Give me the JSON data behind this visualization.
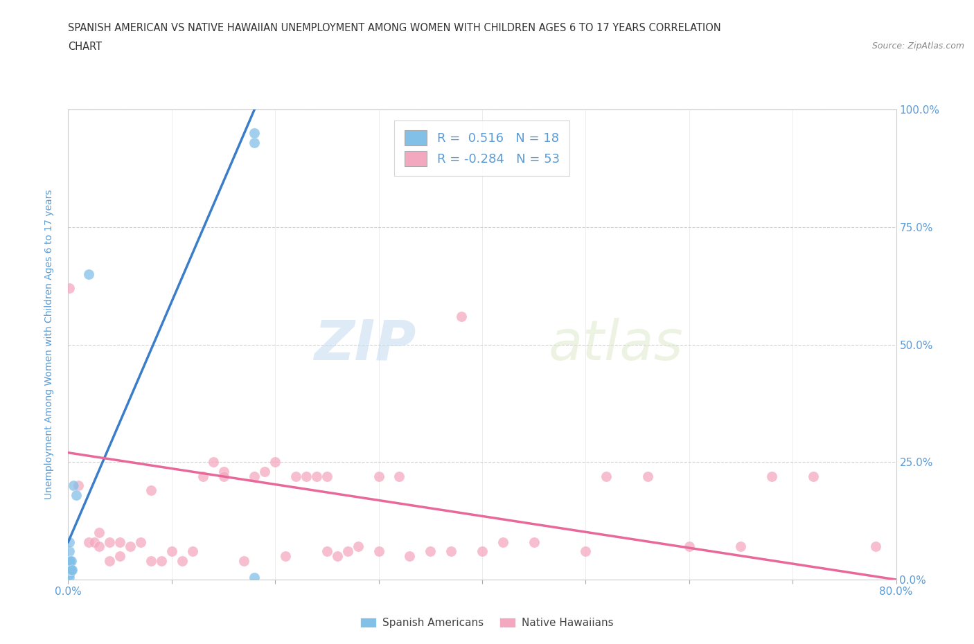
{
  "title_line1": "SPANISH AMERICAN VS NATIVE HAWAIIAN UNEMPLOYMENT AMONG WOMEN WITH CHILDREN AGES 6 TO 17 YEARS CORRELATION",
  "title_line2": "CHART",
  "source": "Source: ZipAtlas.com",
  "ylabel": "Unemployment Among Women with Children Ages 6 to 17 years",
  "xlim": [
    0.0,
    0.8
  ],
  "ylim": [
    0.0,
    1.0
  ],
  "xticks": [
    0.0,
    0.1,
    0.2,
    0.3,
    0.4,
    0.5,
    0.6,
    0.7,
    0.8
  ],
  "xticklabels": [
    "0.0%",
    "",
    "",
    "",
    "",
    "",
    "",
    "",
    "80.0%"
  ],
  "ytick_positions": [
    0.0,
    0.25,
    0.5,
    0.75,
    1.0
  ],
  "yticklabels_right": [
    "0.0%",
    "25.0%",
    "50.0%",
    "75.0%",
    "100.0%"
  ],
  "legend_r1": "R =  0.516   N = 18",
  "legend_r2": "R = -0.284   N = 53",
  "blue_color": "#82c0e8",
  "pink_color": "#f4a8c0",
  "blue_line_color": "#3a7dc9",
  "pink_line_color": "#e8689a",
  "watermark_zip": "ZIP",
  "watermark_atlas": "atlas",
  "blue_scatter_x": [
    0.001,
    0.001,
    0.001,
    0.001,
    0.001,
    0.001,
    0.001,
    0.002,
    0.002,
    0.003,
    0.003,
    0.004,
    0.005,
    0.008,
    0.02,
    0.18,
    0.18,
    0.18
  ],
  "blue_scatter_y": [
    0.005,
    0.01,
    0.02,
    0.03,
    0.04,
    0.06,
    0.08,
    0.02,
    0.04,
    0.02,
    0.04,
    0.02,
    0.2,
    0.18,
    0.65,
    0.93,
    0.95,
    0.005
  ],
  "pink_scatter_x": [
    0.001,
    0.01,
    0.02,
    0.025,
    0.03,
    0.03,
    0.04,
    0.04,
    0.05,
    0.05,
    0.06,
    0.07,
    0.08,
    0.08,
    0.09,
    0.1,
    0.11,
    0.12,
    0.13,
    0.14,
    0.15,
    0.15,
    0.17,
    0.18,
    0.19,
    0.2,
    0.21,
    0.22,
    0.23,
    0.24,
    0.25,
    0.25,
    0.26,
    0.27,
    0.28,
    0.3,
    0.3,
    0.32,
    0.33,
    0.35,
    0.37,
    0.38,
    0.4,
    0.42,
    0.45,
    0.5,
    0.52,
    0.56,
    0.6,
    0.65,
    0.68,
    0.72,
    0.78
  ],
  "pink_scatter_y": [
    0.62,
    0.2,
    0.08,
    0.08,
    0.07,
    0.1,
    0.04,
    0.08,
    0.05,
    0.08,
    0.07,
    0.08,
    0.04,
    0.19,
    0.04,
    0.06,
    0.04,
    0.06,
    0.22,
    0.25,
    0.23,
    0.22,
    0.04,
    0.22,
    0.23,
    0.25,
    0.05,
    0.22,
    0.22,
    0.22,
    0.22,
    0.06,
    0.05,
    0.06,
    0.07,
    0.22,
    0.06,
    0.22,
    0.05,
    0.06,
    0.06,
    0.56,
    0.06,
    0.08,
    0.08,
    0.06,
    0.22,
    0.22,
    0.07,
    0.07,
    0.22,
    0.22,
    0.07
  ],
  "blue_trend_x": [
    0.0,
    0.18
  ],
  "blue_trend_y": [
    0.08,
    1.0
  ],
  "pink_trend_x": [
    0.0,
    0.8
  ],
  "pink_trend_y": [
    0.27,
    0.0
  ],
  "background_color": "#ffffff",
  "grid_color": "#cccccc",
  "title_color": "#333333",
  "axis_label_color": "#5b9bd5",
  "tick_label_color": "#5b9bd5"
}
